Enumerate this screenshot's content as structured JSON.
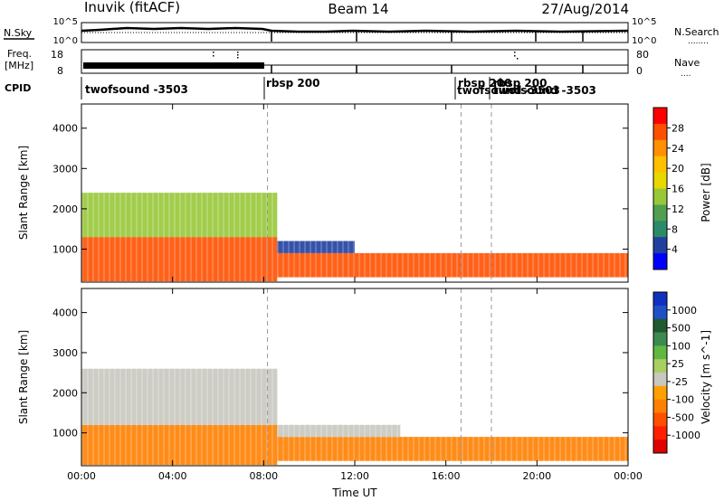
{
  "header": {
    "station": "Inuvik (fitACF)",
    "beam": "Beam 14",
    "date": "27/Aug/2014"
  },
  "nsky_panel": {
    "left_label": "N.Sky",
    "left_ticks": [
      "10^5",
      "10^0"
    ],
    "right_label": "N.Search",
    "right_label_style": "........",
    "right_ticks": [
      "10^5",
      "10^0"
    ]
  },
  "freq_panel": {
    "left_label_line1": "Freq.",
    "left_label_line2": "[MHz]",
    "left_ticks": [
      "18",
      "8"
    ],
    "right_label": "Nave",
    "right_label_style": "....",
    "right_ticks": [
      "80",
      "0"
    ]
  },
  "cpid_panel": {
    "label": "CPID",
    "programs": [
      {
        "name": "twofsound -3503",
        "start": "00:00"
      },
      {
        "name": "rbsp 200",
        "start": "08:10"
      },
      {
        "name": "rbsp 200",
        "start": "16:40"
      },
      {
        "name": "twofsound -3503",
        "start": "16:45"
      },
      {
        "name": "rbsp 200",
        "start": "18:00"
      },
      {
        "name": "twofsound -3503",
        "start": "18:05"
      }
    ]
  },
  "time_axis": {
    "label": "Time UT",
    "ticks": [
      "00:00",
      "04:00",
      "08:00",
      "12:00",
      "16:00",
      "20:00",
      "00:00"
    ]
  },
  "chart_data": [
    {
      "type": "heatmap",
      "title": "Power",
      "ylabel": "Slant Range [km]",
      "xlabel": "",
      "ylim": [
        180,
        4600
      ],
      "y_ticks": [
        "1000",
        "2000",
        "3000",
        "4000"
      ],
      "colorbar": {
        "label": "Power [dB]",
        "ticks": [
          "28",
          "24",
          "20",
          "16",
          "12",
          "8",
          "4"
        ],
        "colors": [
          "#ff0000",
          "#ff5000",
          "#ff9000",
          "#ffc000",
          "#e8d800",
          "#98c838",
          "#50a050",
          "#2c8a6a",
          "#2040a0",
          "#0000ff"
        ]
      },
      "dashed_markers_ut": [
        "08:10",
        "16:40",
        "18:00"
      ],
      "regions": [
        {
          "t_start": 0.0,
          "t_end": 8.6,
          "r_min": 200,
          "r_max": 1300,
          "value": 28
        },
        {
          "t_start": 0.0,
          "t_end": 8.6,
          "r_min": 1300,
          "r_max": 2400,
          "value": 14
        },
        {
          "t_start": 8.6,
          "t_end": 24.0,
          "r_min": 300,
          "r_max": 900,
          "value": 26
        },
        {
          "t_start": 8.6,
          "t_end": 12.0,
          "r_min": 900,
          "r_max": 1200,
          "value": 6
        }
      ]
    },
    {
      "type": "heatmap",
      "title": "Velocity",
      "ylabel": "Slant Range [km]",
      "xlabel": "Time UT",
      "ylim": [
        180,
        4600
      ],
      "y_ticks": [
        "1000",
        "2000",
        "3000",
        "4000"
      ],
      "colorbar": {
        "label": "Velocity [m s^-1]",
        "ticks": [
          "1000",
          "500",
          "100",
          "25",
          "-25",
          "-100",
          "-500",
          "-1000"
        ],
        "colors": [
          "#1030c0",
          "#2050c8",
          "#205a30",
          "#3c8a50",
          "#60b840",
          "#a8d060",
          "#c8c8c0",
          "#ffa000",
          "#ff8000",
          "#ff5000",
          "#ff2000",
          "#e00000"
        ]
      },
      "dashed_markers_ut": [
        "08:10",
        "16:40",
        "18:00"
      ],
      "regions": [
        {
          "t_start": 0.0,
          "t_end": 8.6,
          "r_min": 200,
          "r_max": 1200,
          "value": -100
        },
        {
          "t_start": 0.0,
          "t_end": 8.6,
          "r_min": 1200,
          "r_max": 2600,
          "value": 0
        },
        {
          "t_start": 8.6,
          "t_end": 24.0,
          "r_min": 300,
          "r_max": 900,
          "value": -150
        },
        {
          "t_start": 8.6,
          "t_end": 14.0,
          "r_min": 900,
          "r_max": 1200,
          "value": 0
        }
      ]
    }
  ]
}
